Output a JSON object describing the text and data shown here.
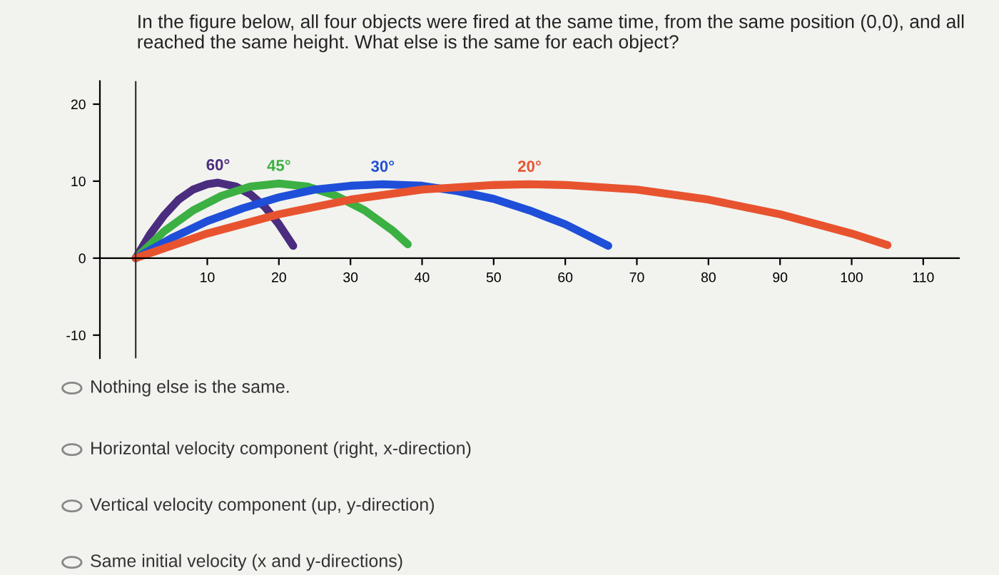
{
  "chart_data": {
    "type": "line",
    "title": "In the figure below, all four objects were fired at the same time, from the same position (0,0), and all reached the same height. What else is the same for each object?",
    "series": [
      {
        "name": "60°",
        "color": "#4b2d7f",
        "x": [
          0,
          2,
          4,
          6,
          8,
          10,
          11.5,
          14,
          16,
          18,
          20,
          22
        ],
        "values": [
          0,
          3.1,
          5.6,
          7.6,
          8.9,
          9.6,
          9.8,
          9.3,
          8.3,
          6.7,
          4.4,
          1.6
        ]
      },
      {
        "name": "45°",
        "color": "#3cb043",
        "x": [
          0,
          4,
          8,
          12,
          16,
          20,
          24,
          28,
          32,
          36,
          38
        ],
        "values": [
          0,
          3.5,
          6.2,
          8.1,
          9.3,
          9.7,
          9.3,
          8.1,
          6.2,
          3.5,
          1.8
        ]
      },
      {
        "name": "30°",
        "color": "#1f4fd8",
        "x": [
          0,
          5,
          10,
          15,
          20,
          25,
          30,
          34.5,
          40,
          45,
          50,
          55,
          60,
          66
        ],
        "values": [
          0,
          2.6,
          4.8,
          6.5,
          7.9,
          8.9,
          9.4,
          9.6,
          9.4,
          8.7,
          7.7,
          6.2,
          4.4,
          1.6
        ]
      },
      {
        "name": "20°",
        "color": "#e8532f",
        "x": [
          0,
          10,
          20,
          30,
          40,
          50,
          55,
          60,
          70,
          80,
          90,
          100,
          105
        ],
        "values": [
          0,
          3.2,
          5.7,
          7.6,
          8.9,
          9.5,
          9.6,
          9.5,
          8.9,
          7.6,
          5.7,
          3.2,
          1.7
        ]
      }
    ],
    "xlim": [
      -5,
      115
    ],
    "ylim": [
      -13,
      23
    ],
    "xticks": [
      10,
      20,
      30,
      40,
      50,
      60,
      70,
      80,
      90,
      100,
      110
    ],
    "yticks": [
      -10,
      0,
      10,
      20
    ],
    "grid": false,
    "legend": false,
    "marker": "none",
    "line_style": "solid",
    "annotations": [
      "Nothing else is the same.",
      "Horizontal velocity component (right, x-direction)",
      "Vertical velocity component (up, y-direction)",
      "Same initial velocity (x and y-directions)"
    ]
  }
}
